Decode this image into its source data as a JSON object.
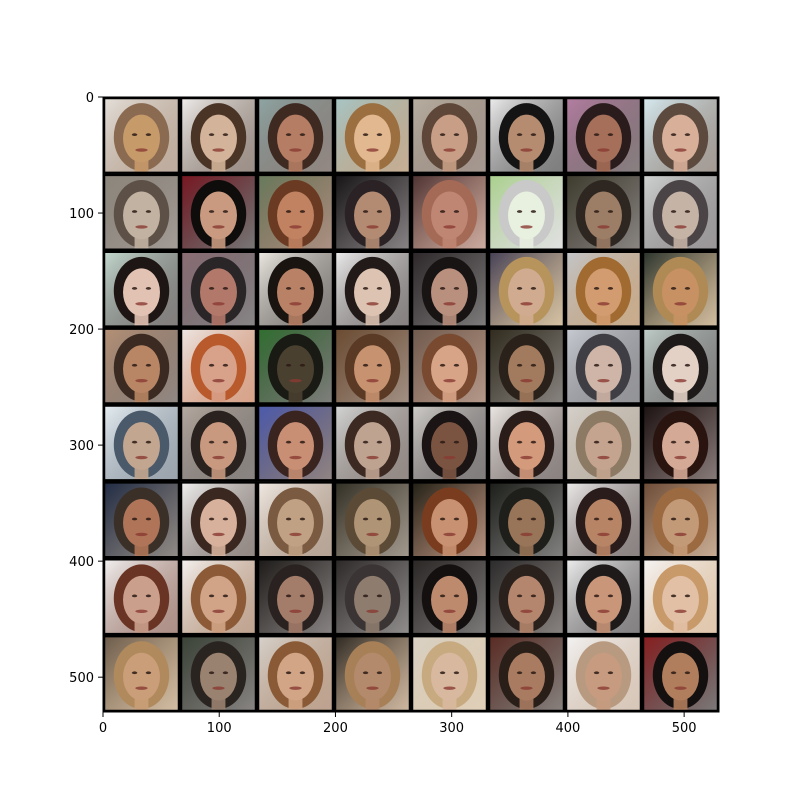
{
  "figure": {
    "type": "image-grid",
    "grid": {
      "rows": 8,
      "cols": 8
    },
    "background": "#ffffff",
    "axis_color": "#000000",
    "cell_border_color": "#000000"
  },
  "axes": {
    "xlim": [
      0,
      530
    ],
    "ylim": [
      530,
      0
    ],
    "x_ticks": [
      {
        "value": 0,
        "label": "0"
      },
      {
        "value": 100,
        "label": "100"
      },
      {
        "value": 200,
        "label": "200"
      },
      {
        "value": 300,
        "label": "300"
      },
      {
        "value": 400,
        "label": "400"
      },
      {
        "value": 500,
        "label": "500"
      }
    ],
    "y_ticks": [
      {
        "value": 0,
        "label": "0"
      },
      {
        "value": 100,
        "label": "100"
      },
      {
        "value": 200,
        "label": "200"
      },
      {
        "value": 300,
        "label": "300"
      },
      {
        "value": 400,
        "label": "400"
      },
      {
        "value": 500,
        "label": "500"
      }
    ]
  },
  "tiles": [
    [
      "#c79a6a",
      "#e6e2dc",
      "#8a6a50"
    ],
    [
      "#d3b49a",
      "#f2f0ee",
      "#4a3426"
    ],
    [
      "#b57d63",
      "#8fa7a5",
      "#3f2a22"
    ],
    [
      "#e1b88f",
      "#a7c7c8",
      "#9b6f3f"
    ],
    [
      "#c89f86",
      "#b8b0a2",
      "#5e4638"
    ],
    [
      "#b68c70",
      "#f1f1f1",
      "#141414"
    ],
    [
      "#a66f59",
      "#b67fa4",
      "#2a1c1c"
    ],
    [
      "#d8b09a",
      "#d9eef4",
      "#5c4a3e"
    ],
    [
      "#c2b2a1",
      "#8d877d",
      "#5d5046"
    ],
    [
      "#c99a7f",
      "#7a1520",
      "#0f0c0c"
    ],
    [
      "#c08261",
      "#667a5b",
      "#6b3a22"
    ],
    [
      "#b38b73",
      "#141214",
      "#2a2224"
    ],
    [
      "#c08674",
      "#4a3030",
      "#a56a55"
    ],
    [
      "#e8f0e0",
      "#a8d08a",
      "#c9c9c9"
    ],
    [
      "#9c7d66",
      "#3c3a2c",
      "#2e2620"
    ],
    [
      "#c5b3a5",
      "#d2d5d4",
      "#4a4446"
    ],
    [
      "#e2c2b2",
      "#c6dcd2",
      "#1e1614"
    ],
    [
      "#b2786a",
      "#8c6d75",
      "#2a2628"
    ],
    [
      "#b98266",
      "#f0ede6",
      "#1a1410"
    ],
    [
      "#ddc3b1",
      "#f0f0f0",
      "#221a18"
    ],
    [
      "#b98f7d",
      "#2c2628",
      "#181414"
    ],
    [
      "#d0ab8f",
      "#413d55",
      "#b7945c"
    ],
    [
      "#d29c70",
      "#c4c8cc",
      "#a06a30"
    ],
    [
      "#c79164",
      "#26302a",
      "#b08a55"
    ],
    [
      "#b88664",
      "#b79277",
      "#3a2a22"
    ],
    [
      "#d8a189",
      "#eee9e6",
      "#b85a2c"
    ],
    [
      "#4a4030",
      "#2f6f2f",
      "#1a1a14"
    ],
    [
      "#c79270",
      "#6a4a30",
      "#5a3a24"
    ],
    [
      "#d7a487",
      "#6e5a4e",
      "#7a4a30"
    ],
    [
      "#a27a5d",
      "#2f2a1c",
      "#2a221a"
    ],
    [
      "#cfb5a7",
      "#c9cdd4",
      "#3e3e44"
    ],
    [
      "#e3d1c5",
      "#c2d0cb",
      "#1e1a1a"
    ],
    [
      "#c3a690",
      "#e8f0f4",
      "#4a5a6a"
    ],
    [
      "#c8997f",
      "#b8aca2",
      "#2a221e"
    ],
    [
      "#c88f74",
      "#4a5ab0",
      "#3a2420"
    ],
    [
      "#bfa391",
      "#d6d8d8",
      "#3c2a22"
    ],
    [
      "#7b5441",
      "#d2d0cc",
      "#1a1414"
    ],
    [
      "#d39a7c",
      "#f0ece8",
      "#2a1c18"
    ],
    [
      "#c4a48e",
      "#d6d2cc",
      "#8c7a64"
    ],
    [
      "#d4aa96",
      "#1a1010",
      "#2a1410"
    ],
    [
      "#b07558",
      "#1e2a44",
      "#3a3028"
    ],
    [
      "#d7b19c",
      "#f4f4f4",
      "#3a2820"
    ],
    [
      "#c1a184",
      "#f2ece6",
      "#7a5a40"
    ],
    [
      "#b09476",
      "#2e2c22",
      "#5a4a36"
    ],
    [
      "#c89172",
      "#1e1e14",
      "#7a3c1e"
    ],
    [
      "#987458",
      "#1a1c18",
      "#1e1e1a"
    ],
    [
      "#b88466",
      "#f0eeee",
      "#2a1c1a"
    ],
    [
      "#c39a78",
      "#6a4a36",
      "#9c6a40"
    ],
    [
      "#caa08c",
      "#f4f4f4",
      "#6a3424"
    ],
    [
      "#d1a487",
      "#f6f4f2",
      "#8c5a36"
    ],
    [
      "#a47c6a",
      "#1a1816",
      "#2a2220"
    ],
    [
      "#8e7c6e",
      "#2a2626",
      "#3a3434"
    ],
    [
      "#bd8a6e",
      "#2a2624",
      "#141010"
    ],
    [
      "#b5866e",
      "#2a2a2a",
      "#2a201c"
    ],
    [
      "#c99679",
      "#f2f2f2",
      "#1e1a1a"
    ],
    [
      "#e2c0a6",
      "#f6f6f6",
      "#c89a6a"
    ],
    [
      "#c99e78",
      "#6a5a4a",
      "#b08a5c"
    ],
    [
      "#9a8270",
      "#384236",
      "#2a2420"
    ],
    [
      "#d2a586",
      "#d8d4ce",
      "#8a5a36"
    ],
    [
      "#b48a6c",
      "#2a2620",
      "#a88058"
    ],
    [
      "#d8b9a0",
      "#d9d2c6",
      "#c8aa80"
    ],
    [
      "#a97c62",
      "#5a2a22",
      "#2a1e18"
    ],
    [
      "#c79b80",
      "#f4f4f4",
      "#b89a80"
    ],
    [
      "#b07e5c",
      "#8a1c1e",
      "#141010"
    ]
  ]
}
